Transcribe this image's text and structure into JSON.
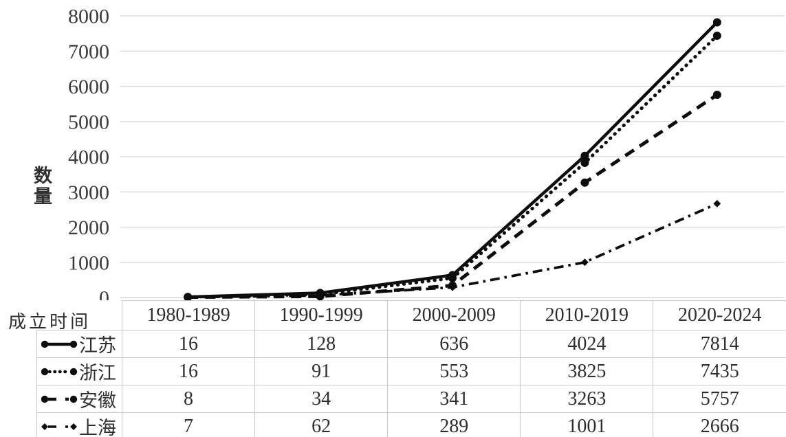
{
  "chart_data": {
    "type": "line",
    "title": "",
    "ylabel": "数量",
    "xlabel": "成立时间",
    "categories": [
      "1980-1989",
      "1990-1999",
      "2000-2009",
      "2010-2019",
      "2020-2024"
    ],
    "series": [
      {
        "name": "江苏",
        "slug": "jiangsu",
        "values": [
          16,
          128,
          636,
          4024,
          7814
        ],
        "line_style": "solid",
        "marker": "circle"
      },
      {
        "name": "浙江",
        "slug": "zhejiang",
        "values": [
          16,
          91,
          553,
          3825,
          7435
        ],
        "line_style": "dotted",
        "marker": "circle"
      },
      {
        "name": "安徽",
        "slug": "anhui",
        "values": [
          8,
          34,
          341,
          3263,
          5757
        ],
        "line_style": "dashed",
        "marker": "circle"
      },
      {
        "name": "上海",
        "slug": "shanghai",
        "values": [
          7,
          62,
          289,
          1001,
          2666
        ],
        "line_style": "dashdot",
        "marker": "diamond"
      }
    ],
    "ylim": [
      0,
      8000
    ],
    "yticks": [
      0,
      1000,
      2000,
      3000,
      4000,
      5000,
      6000,
      7000,
      8000
    ],
    "grid": true,
    "legend_position": "table-rows",
    "colors": {
      "line": "#0d0d0d",
      "gridline": "#d9d9d9",
      "table_border": "#c8c8c8",
      "text": "#2f2f2f"
    }
  }
}
